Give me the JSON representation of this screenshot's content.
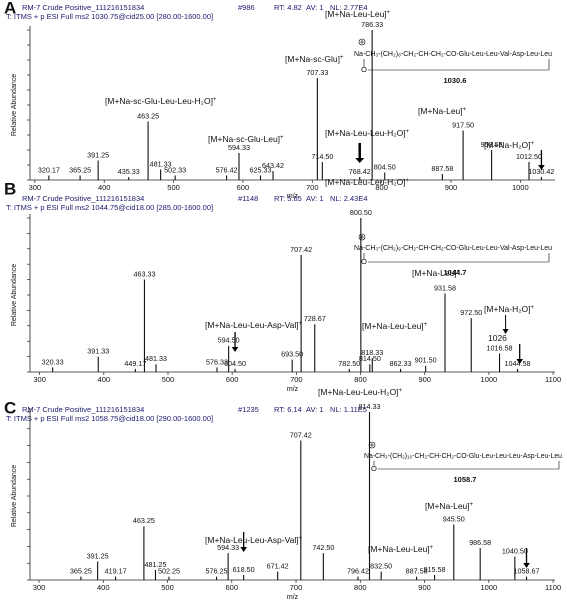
{
  "chart_data": [
    {
      "type": "stem",
      "panel_label": "A",
      "run": "RM-7 Crude Positive_111216151834",
      "scan": "#986",
      "rt": "RT: 4.82",
      "av": "AV: 1",
      "nl": "NL: 2.77E4",
      "filter": "T: ITMS + p ESI Full ms2 1030.75@cid25.00 [280.00-1600.00]",
      "x_label": "m/z",
      "y_label": "Relative Abundance",
      "xlim": [
        293,
        1050
      ],
      "xticks": [
        300,
        400,
        500,
        600,
        700,
        800,
        900,
        1000
      ],
      "ylim": [
        0,
        100
      ],
      "yticks": [
        0,
        10,
        20,
        30,
        40,
        50,
        60,
        70,
        80,
        90,
        100
      ],
      "color": "#111111",
      "x": [
        320.17,
        365.25,
        391.25,
        435.33,
        463.25,
        481.33,
        502.33,
        576.42,
        594.33,
        625.33,
        643.42,
        707.33,
        714.5,
        768.42,
        786.33,
        804.5,
        887.58,
        917.5,
        958.58,
        1012.5,
        1030.42
      ],
      "x_labels": [
        "320.17",
        "365.25",
        "391.25",
        "435.33",
        "463.25",
        "481.33",
        "502.33",
        "576.42",
        "594.33",
        "625.33",
        "643.42",
        "707.33",
        "714.50",
        "768.42",
        "786.33",
        "804.50",
        "887.58",
        "917.50",
        "958.58",
        "1012.50",
        "1030.42"
      ],
      "values": [
        3,
        3,
        13,
        2,
        39,
        7,
        3,
        3,
        18,
        3,
        6,
        68,
        12,
        2,
        100,
        5,
        4,
        33,
        20,
        12,
        2
      ],
      "annotations": [
        {
          "text": "[M+Na-sc-Glu-Leu-Leu-H₂O]",
          "charge": "+"
        },
        {
          "text": "[M+Na-sc-Glu-Leu]",
          "charge": "+"
        },
        {
          "text": "[M+Na-sc-Glu]",
          "charge": "+"
        },
        {
          "text": "[M+Na-Leu-Leu]",
          "charge": "+"
        },
        {
          "text": "[M+Na-Leu-Leu-H₂O]",
          "charge": "+"
        },
        {
          "text": "[M+Na-Leu]",
          "charge": "+"
        },
        {
          "text": "[M+Na-H₂O]",
          "charge": "+"
        }
      ],
      "structure": {
        "formula": "Na-CH₃-(CH₂)₈-CH₂-CH-CH₂-CO-Glu-Leu-Leu-Val-Asp-Leu-Leu",
        "ring_atom": "O",
        "mass": 1030.6
      }
    },
    {
      "type": "stem",
      "panel_label": "B",
      "run": "RM-7 Crude Positive_111216151834",
      "scan": "#1148",
      "rt": "RT: 5.65",
      "av": "AV: 1",
      "nl": "NL: 2.43E4",
      "filter": "T: ITMS + p ESI Full ms2 1044.75@cid18.00 [285.00-1600.00]",
      "x_label": "m/z",
      "y_label": "Relative Abundance",
      "xlim": [
        285,
        1103
      ],
      "xticks": [
        300,
        400,
        500,
        600,
        700,
        800,
        900,
        1000,
        1100
      ],
      "ylim": [
        0,
        100
      ],
      "yticks": [
        0,
        10,
        20,
        30,
        40,
        50,
        60,
        70,
        80,
        90,
        100
      ],
      "color": "#111111",
      "x": [
        320.33,
        391.33,
        449.17,
        463.33,
        481.33,
        576.33,
        594.5,
        604.5,
        693.5,
        707.42,
        728.67,
        782.5,
        800.5,
        814.5,
        818.33,
        862.33,
        901.5,
        931.58,
        972.5,
        1016.58,
        1044.58
      ],
      "x_labels": [
        "320.33",
        "391.33",
        "449.17",
        "463.33",
        "481.33",
        "576.33",
        "594.50",
        "604.50",
        "693.50",
        "707.42",
        "728.67",
        "782.50",
        "800.50",
        "814.50",
        "818.33",
        "862.33",
        "901.50",
        "931.58",
        "972.50",
        "1016.58",
        "1044.58"
      ],
      "values": [
        3,
        10,
        2,
        60,
        5,
        3,
        17,
        2,
        8,
        76,
        31,
        2,
        100,
        5,
        9,
        2,
        4,
        51,
        35,
        12,
        2
      ],
      "annotations": [
        {
          "text": "[M+Na-Leu-Leu-H₂O]",
          "charge": "+"
        },
        {
          "text": "[M+Na-Leu-Leu-Asp-Val]",
          "charge": "+"
        },
        {
          "text": "[M+Na-Leu-Leu]",
          "charge": "+"
        },
        {
          "text": "[M+Na-Leu]",
          "charge": "+"
        },
        {
          "text": "[M+Na-H₂O]",
          "charge": "+"
        },
        {
          "text": "1026",
          "charge": ""
        }
      ],
      "structure": {
        "formula": "Na-CH₃-(CH₂)₉-CH₂-CH-CH₂-CO-Glu-Leu-Leu-Val-Asp-Leu-Leu",
        "ring_atom": "O",
        "mass": 1044.7
      }
    },
    {
      "type": "stem",
      "panel_label": "C",
      "run": "RM-7 Crude Positive_111216151834",
      "scan": "#1235",
      "rt": "RT: 6.14",
      "av": "AV: 1",
      "nl": "NL: 1.11E5",
      "filter": "T: ITMS + p ESI Full ms2 1058.75@cid18.00 [290.00-1600.00]",
      "x_label": "m/z",
      "y_label": "Relative Abundance",
      "xlim": [
        286,
        1103
      ],
      "xticks": [
        300,
        400,
        500,
        600,
        700,
        800,
        900,
        1000,
        1100
      ],
      "ylim": [
        0,
        100
      ],
      "yticks": [
        0,
        10,
        20,
        30,
        40,
        50,
        60,
        70,
        80,
        90,
        100
      ],
      "color": "#111111",
      "x": [
        365.25,
        391.25,
        419.17,
        463.25,
        481.25,
        502.25,
        576.25,
        594.33,
        618.5,
        671.42,
        707.42,
        742.5,
        796.42,
        814.33,
        832.5,
        887.58,
        915.58,
        945.5,
        986.58,
        1040.5,
        1058.67
      ],
      "x_labels": [
        "365.25",
        "391.25",
        "419.17",
        "463.25",
        "481.25",
        "502.25",
        "576.25",
        "594.33",
        "618.50",
        "671.42",
        "707.42",
        "742.50",
        "796.42",
        "814.33",
        "832.50",
        "887.58",
        "915.58",
        "945.50",
        "986.58",
        "1040.50",
        "1058.67"
      ],
      "values": [
        2,
        11,
        2,
        32,
        6,
        2,
        2,
        16,
        3,
        5,
        83,
        16,
        2,
        100,
        5,
        2,
        3,
        33,
        19,
        14,
        2
      ],
      "annotations": [
        {
          "text": "[M+Na-Leu-Leu-H₂O]",
          "charge": "+"
        },
        {
          "text": "[M+Na-Leu-Leu-Asp-Val]",
          "charge": "+"
        },
        {
          "text": "[M+Na-Leu-Leu]",
          "charge": "+"
        },
        {
          "text": "[M+Na-Leu]",
          "charge": "+"
        }
      ],
      "structure": {
        "formula": "Na-CH₃-(CH₂)₁₀-CH₂-CH-CH₂-CO-Glu-Leu-Leu-Leu-Asp-Leu-Leu",
        "ring_atom": "O",
        "mass": 1058.7
      }
    }
  ]
}
